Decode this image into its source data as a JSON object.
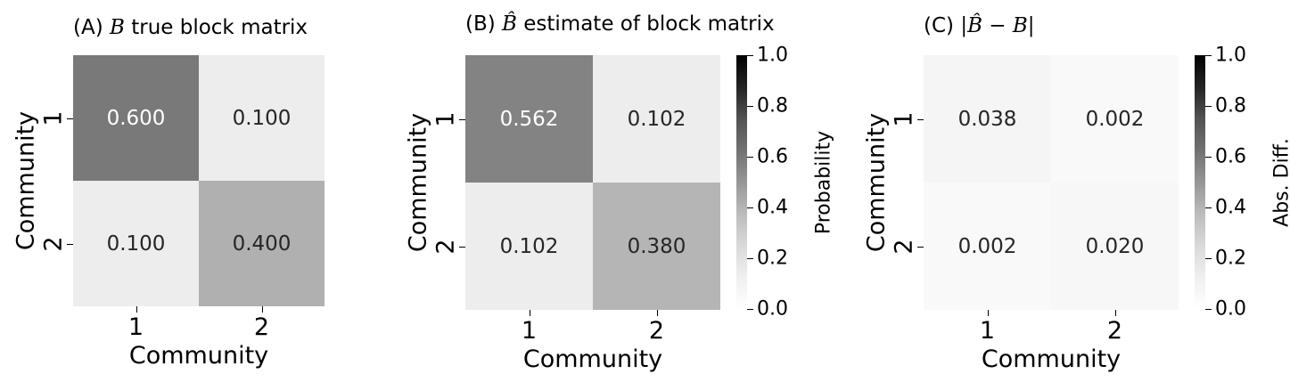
{
  "chart_data": [
    {
      "type": "heatmap",
      "title_prefix": "(A) ",
      "title_symbol": "B",
      "title_suffix": " true block matrix",
      "xlabel": "Community",
      "ylabel": "Community",
      "x_ticks": [
        "1",
        "2"
      ],
      "y_ticks": [
        "1",
        "2"
      ],
      "values": [
        [
          0.6,
          0.1
        ],
        [
          0.1,
          0.4
        ]
      ],
      "labels": [
        [
          "0.600",
          "0.100"
        ],
        [
          "0.100",
          "0.400"
        ]
      ],
      "vmin": 0,
      "vmax": 1,
      "colormap": "Greys",
      "colorbar": null
    },
    {
      "type": "heatmap",
      "title_prefix": "(B) ",
      "title_symbol": "B̂",
      "title_suffix": " estimate of block matrix",
      "xlabel": "Community",
      "ylabel": "Community",
      "x_ticks": [
        "1",
        "2"
      ],
      "y_ticks": [
        "1",
        "2"
      ],
      "values": [
        [
          0.562,
          0.102
        ],
        [
          0.102,
          0.38
        ]
      ],
      "labels": [
        [
          "0.562",
          "0.102"
        ],
        [
          "0.102",
          "0.380"
        ]
      ],
      "vmin": 0,
      "vmax": 1,
      "colormap": "Greys",
      "colorbar": {
        "label": "Probability",
        "ticks": [
          "0.0",
          "0.2",
          "0.4",
          "0.6",
          "0.8",
          "1.0"
        ]
      }
    },
    {
      "type": "heatmap",
      "title_prefix": "(C) ",
      "title_symbol": "|B̂ − B|",
      "title_suffix": "",
      "xlabel": "Community",
      "ylabel": "Community",
      "x_ticks": [
        "1",
        "2"
      ],
      "y_ticks": [
        "1",
        "2"
      ],
      "values": [
        [
          0.038,
          0.002
        ],
        [
          0.002,
          0.02
        ]
      ],
      "labels": [
        [
          "0.038",
          "0.002"
        ],
        [
          "0.002",
          "0.020"
        ]
      ],
      "vmin": 0,
      "vmax": 1,
      "colormap": "Greys",
      "colorbar": {
        "label": "Abs. Diff.",
        "ticks": [
          "0.0",
          "0.2",
          "0.4",
          "0.6",
          "0.8",
          "1.0"
        ]
      }
    }
  ]
}
